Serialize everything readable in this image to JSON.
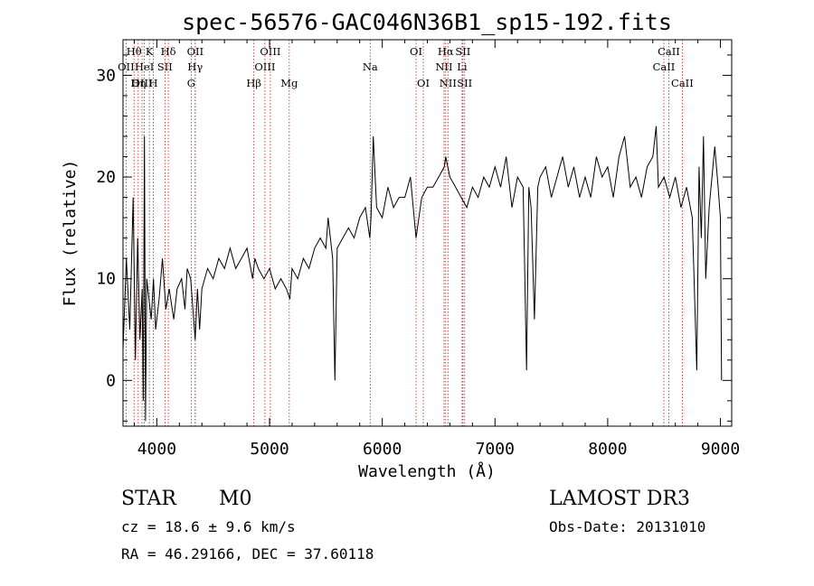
{
  "chart_data": {
    "type": "line",
    "title": "spec-56576-GAC046N36B1_sp15-192.fits",
    "xlabel": "Wavelength (Å)",
    "ylabel": "Flux (relative)",
    "xlim": [
      3700,
      9100
    ],
    "ylim": [
      -4.5,
      33.5
    ],
    "x_ticks": [
      4000,
      5000,
      6000,
      7000,
      8000,
      9000
    ],
    "y_ticks": [
      0,
      10,
      20,
      30
    ],
    "x_tick_labels": [
      "4000",
      "5000",
      "6000",
      "7000",
      "8000",
      "9000"
    ],
    "y_tick_labels": [
      "0",
      "10",
      "20",
      "30"
    ],
    "line_color": "#000000",
    "marker_color": "#b22222",
    "series": [
      {
        "name": "flux",
        "points": [
          [
            3700,
            3
          ],
          [
            3730,
            12
          ],
          [
            3760,
            5
          ],
          [
            3790,
            18
          ],
          [
            3810,
            2
          ],
          [
            3830,
            14
          ],
          [
            3850,
            4
          ],
          [
            3870,
            9
          ],
          [
            3880,
            -2
          ],
          [
            3890,
            24
          ],
          [
            3900,
            -4
          ],
          [
            3910,
            10
          ],
          [
            3930,
            8
          ],
          [
            3950,
            6
          ],
          [
            3970,
            10
          ],
          [
            3990,
            5
          ],
          [
            4020,
            8
          ],
          [
            4050,
            12
          ],
          [
            4080,
            7
          ],
          [
            4110,
            9
          ],
          [
            4150,
            6
          ],
          [
            4180,
            9
          ],
          [
            4220,
            10
          ],
          [
            4250,
            7
          ],
          [
            4270,
            11
          ],
          [
            4300,
            10
          ],
          [
            4340,
            4
          ],
          [
            4360,
            9
          ],
          [
            4380,
            5
          ],
          [
            4400,
            9
          ],
          [
            4450,
            11
          ],
          [
            4500,
            10
          ],
          [
            4550,
            12
          ],
          [
            4600,
            11
          ],
          [
            4650,
            13
          ],
          [
            4700,
            11
          ],
          [
            4750,
            12
          ],
          [
            4800,
            13
          ],
          [
            4850,
            10
          ],
          [
            4870,
            12
          ],
          [
            4900,
            11
          ],
          [
            4950,
            10
          ],
          [
            5000,
            11
          ],
          [
            5050,
            9
          ],
          [
            5100,
            10
          ],
          [
            5150,
            9
          ],
          [
            5180,
            8
          ],
          [
            5200,
            11
          ],
          [
            5250,
            10
          ],
          [
            5300,
            12
          ],
          [
            5350,
            11
          ],
          [
            5400,
            13
          ],
          [
            5450,
            14
          ],
          [
            5500,
            13
          ],
          [
            5520,
            16
          ],
          [
            5540,
            14
          ],
          [
            5560,
            12
          ],
          [
            5580,
            0
          ],
          [
            5600,
            13
          ],
          [
            5650,
            14
          ],
          [
            5700,
            15
          ],
          [
            5750,
            14
          ],
          [
            5800,
            16
          ],
          [
            5850,
            17
          ],
          [
            5890,
            14
          ],
          [
            5900,
            16
          ],
          [
            5920,
            24
          ],
          [
            5950,
            17
          ],
          [
            6000,
            16
          ],
          [
            6050,
            19
          ],
          [
            6100,
            17
          ],
          [
            6150,
            18
          ],
          [
            6200,
            18
          ],
          [
            6250,
            20
          ],
          [
            6300,
            14
          ],
          [
            6350,
            18
          ],
          [
            6400,
            19
          ],
          [
            6450,
            19
          ],
          [
            6500,
            20
          ],
          [
            6550,
            21
          ],
          [
            6563,
            22
          ],
          [
            6600,
            20
          ],
          [
            6650,
            19
          ],
          [
            6700,
            18
          ],
          [
            6750,
            17
          ],
          [
            6800,
            19
          ],
          [
            6850,
            18
          ],
          [
            6900,
            20
          ],
          [
            6950,
            19
          ],
          [
            7000,
            21
          ],
          [
            7050,
            19
          ],
          [
            7100,
            22
          ],
          [
            7150,
            17
          ],
          [
            7200,
            20
          ],
          [
            7250,
            19
          ],
          [
            7280,
            1
          ],
          [
            7300,
            19
          ],
          [
            7320,
            17
          ],
          [
            7350,
            6
          ],
          [
            7380,
            19
          ],
          [
            7400,
            20
          ],
          [
            7450,
            21
          ],
          [
            7500,
            18
          ],
          [
            7550,
            20
          ],
          [
            7600,
            22
          ],
          [
            7650,
            19
          ],
          [
            7700,
            21
          ],
          [
            7750,
            18
          ],
          [
            7800,
            20
          ],
          [
            7850,
            18
          ],
          [
            7900,
            22
          ],
          [
            7950,
            20
          ],
          [
            8000,
            21
          ],
          [
            8050,
            18
          ],
          [
            8100,
            22
          ],
          [
            8150,
            24
          ],
          [
            8200,
            19
          ],
          [
            8250,
            20
          ],
          [
            8300,
            18
          ],
          [
            8350,
            21
          ],
          [
            8400,
            22
          ],
          [
            8430,
            25
          ],
          [
            8450,
            19
          ],
          [
            8500,
            20
          ],
          [
            8550,
            18
          ],
          [
            8600,
            20
          ],
          [
            8650,
            17
          ],
          [
            8700,
            19
          ],
          [
            8750,
            16
          ],
          [
            8790,
            1
          ],
          [
            8810,
            21
          ],
          [
            8830,
            14
          ],
          [
            8850,
            24
          ],
          [
            8870,
            10
          ],
          [
            8900,
            17
          ],
          [
            8950,
            23
          ],
          [
            8980,
            19
          ],
          [
            9000,
            16
          ],
          [
            9010,
            0
          ]
        ]
      }
    ],
    "spectral_lines": [
      {
        "label": "Hθ",
        "wavelength": 3798,
        "row": 1
      },
      {
        "label": "OII",
        "wavelength": 3727,
        "row": 2
      },
      {
        "label": "OIII",
        "wavelength": 3869,
        "row": 3
      },
      {
        "label": "HeI",
        "wavelength": 3889,
        "row": 2
      },
      {
        "label": "K",
        "wavelength": 3934,
        "row": 1
      },
      {
        "label": "Hη",
        "wavelength": 3835,
        "row": 3
      },
      {
        "label": "SII",
        "wavelength": 4072,
        "row": 2
      },
      {
        "label": "H",
        "wavelength": 3969,
        "row": 3
      },
      {
        "label": "Hδ",
        "wavelength": 4102,
        "row": 1
      },
      {
        "label": "OII",
        "wavelength": 4341,
        "row": 1
      },
      {
        "label": "Hγ",
        "wavelength": 4340,
        "row": 2
      },
      {
        "label": "G",
        "wavelength": 4305,
        "row": 3
      },
      {
        "label": "OIII",
        "wavelength": 5007,
        "row": 1
      },
      {
        "label": "OIII",
        "wavelength": 4959,
        "row": 2
      },
      {
        "label": "Hβ",
        "wavelength": 4861,
        "row": 3
      },
      {
        "label": "Mg",
        "wavelength": 5175,
        "row": 3
      },
      {
        "label": "Na",
        "wavelength": 5893,
        "row": 2
      },
      {
        "label": "OI",
        "wavelength": 6300,
        "row": 1
      },
      {
        "label": "OI",
        "wavelength": 6364,
        "row": 3
      },
      {
        "label": "Hα",
        "wavelength": 6563,
        "row": 1
      },
      {
        "label": "SII",
        "wavelength": 6716,
        "row": 1
      },
      {
        "label": "NII",
        "wavelength": 6548,
        "row": 2
      },
      {
        "label": "Li",
        "wavelength": 6708,
        "row": 2
      },
      {
        "label": "NII",
        "wavelength": 6583,
        "row": 3
      },
      {
        "label": "SII",
        "wavelength": 6731,
        "row": 3
      },
      {
        "label": "CaII",
        "wavelength": 8542,
        "row": 1
      },
      {
        "label": "CaII",
        "wavelength": 8498,
        "row": 2
      },
      {
        "label": "CaII",
        "wavelength": 8662,
        "row": 3
      }
    ]
  },
  "info": {
    "object_class": "STAR",
    "subclass": "M0",
    "survey": "LAMOST DR3",
    "redshift_line": "cz = 18.6 ± 9.6 km/s",
    "obs_date_line": "Obs-Date: 20131010",
    "coords_line": "RA =  46.29166, DEC =  37.60118"
  }
}
